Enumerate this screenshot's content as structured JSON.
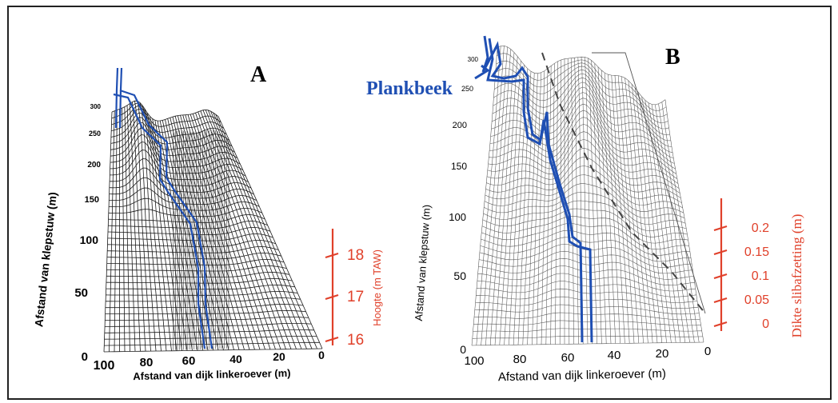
{
  "panel_a": {
    "letter": "A",
    "y_axis_label": "Afstand van klepstuw (m)",
    "y_ticks": [
      "0",
      "50",
      "100",
      "150",
      "200",
      "250",
      "300"
    ],
    "x_axis_label": "Afstand van dijk linkeroever (m)",
    "x_ticks": [
      "100",
      "80",
      "60",
      "40",
      "20",
      "0"
    ],
    "z_axis_label": "Hoogte (m TAW)",
    "z_ticks": [
      "16",
      "17",
      "18"
    ]
  },
  "panel_b": {
    "letter": "B",
    "stream_label": "Plankbeek",
    "y_axis_label": "Afstand van klepstuw (m)",
    "y_ticks": [
      "0",
      "50",
      "100",
      "150",
      "200",
      "250",
      "300"
    ],
    "x_axis_label": "Afstand van dijk linkeroever (m)",
    "x_ticks": [
      "100",
      "80",
      "60",
      "40",
      "20",
      "0"
    ],
    "z_axis_label": "Dikte slibafzetting (m)",
    "z_ticks": [
      "0",
      "0.05",
      "0.1",
      "0.15",
      "0.2"
    ]
  },
  "colors": {
    "frame": "#222222",
    "mesh_a": "#1a1a1a",
    "mesh_b": "#555555",
    "stream_blue": "#1f4fb3",
    "red_axis": "#e0402a"
  }
}
